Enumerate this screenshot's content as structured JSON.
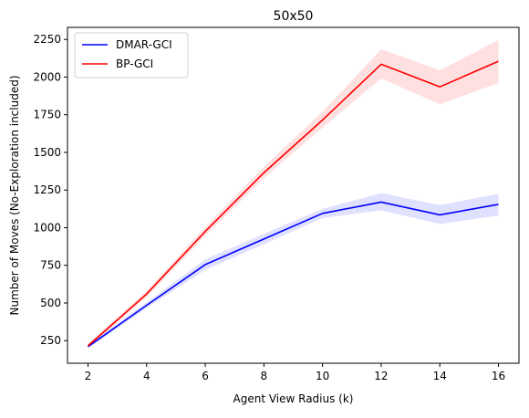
{
  "chart_data": {
    "type": "line",
    "title": "50x50",
    "xlabel": "Agent View Radius (k)",
    "ylabel": "Number of Moves (No-Exploration included)",
    "x": [
      2,
      4,
      6,
      8,
      10,
      12,
      14,
      16
    ],
    "xlim": [
      1.3,
      16.7
    ],
    "ylim": [
      100,
      2330
    ],
    "xticks": [
      2,
      4,
      6,
      8,
      10,
      12,
      14,
      16
    ],
    "yticks": [
      250,
      500,
      750,
      1000,
      1250,
      1500,
      1750,
      2000,
      2250
    ],
    "grid": false,
    "legend_position": "upper left",
    "series": [
      {
        "name": "DMAR-GCI",
        "color": "#0000ff",
        "band_color": "#0000ff",
        "values": [
          210,
          485,
          755,
          925,
          1095,
          1170,
          1085,
          1155
        ],
        "lower": [
          200,
          465,
          720,
          890,
          1065,
          1115,
          1025,
          1080
        ],
        "upper": [
          225,
          505,
          790,
          960,
          1125,
          1230,
          1150,
          1225
        ]
      },
      {
        "name": "BP-GCI",
        "color": "#ff0000",
        "band_color": "#ff0000",
        "values": [
          215,
          560,
          975,
          1365,
          1715,
          2085,
          1935,
          2105
        ],
        "lower": [
          205,
          540,
          945,
          1330,
          1665,
          1990,
          1820,
          1960
        ],
        "upper": [
          230,
          580,
          1005,
          1405,
          1770,
          2185,
          2045,
          2245
        ]
      }
    ]
  }
}
